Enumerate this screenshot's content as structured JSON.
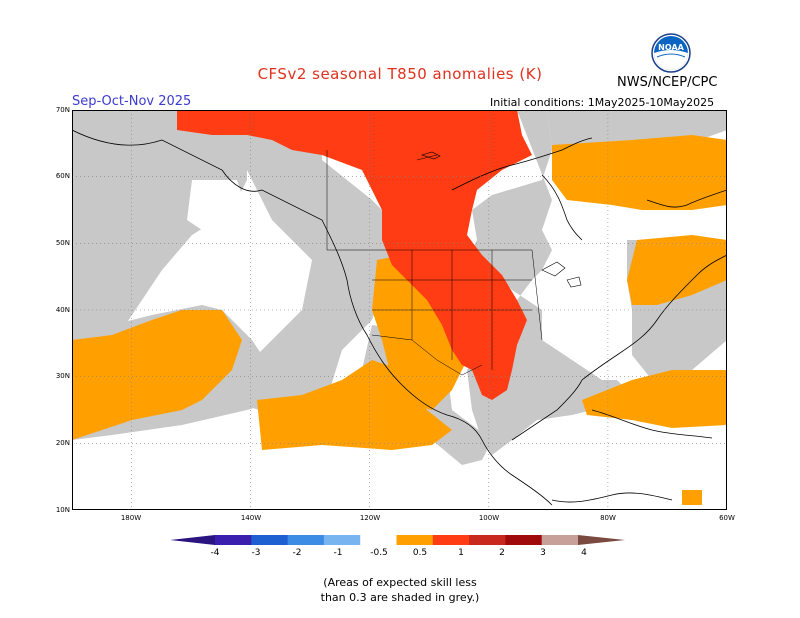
{
  "header": {
    "title": "CFSv2 seasonal T850 anomalies (K)",
    "season": "Sep-Oct-Nov 2025",
    "initial_conditions": "Initial conditions: 1May2025-10May2025",
    "agency": "NWS/NCEP/CPC",
    "logo_text": "NOAA"
  },
  "map": {
    "lat_labels": [
      "70N",
      "60N",
      "50N",
      "40N",
      "30N",
      "20N",
      "10N"
    ],
    "lon_labels": [
      "180W",
      "160W",
      "140W",
      "120W",
      "100W",
      "80W",
      "60W"
    ],
    "colors": {
      "low_skill_grey": "#c8c8c8",
      "anom_0_5_to_1": "#ffa000",
      "anom_1_to_2": "#ff3c14",
      "below_threshold": "#ffffff",
      "grid": "#808080",
      "coast": "#000000"
    }
  },
  "legend": {
    "labels": [
      "-4",
      "-3",
      "-2",
      "-1",
      "-0.5",
      "0.5",
      "1",
      "2",
      "3",
      "4"
    ],
    "colors": [
      "#3a1eae",
      "#1e5fd2",
      "#3c8ce6",
      "#78b4f0",
      "#ffffff",
      "#ffa000",
      "#ff3c14",
      "#c8281e",
      "#a00a0a",
      "#c8a09a"
    ],
    "low_end_color": "#2a1480",
    "high_end_color": "#7a4a40"
  },
  "footnote": {
    "line1": "(Areas of expected skill less",
    "line2": "than 0.3 are shaded in grey.)"
  }
}
